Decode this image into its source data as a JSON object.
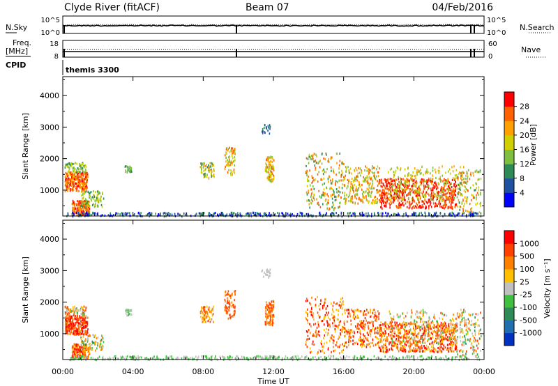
{
  "header": {
    "station": "Clyde River (fitACF)",
    "beam": "Beam 07",
    "date": "04/Feb/2016"
  },
  "strip": {
    "nsky_label": "N.Sky",
    "nsearch_label": "N.Search",
    "nsky_ticks": [
      "10^5",
      "10^0"
    ],
    "nsearch_ticks": [
      "10^5",
      "10^0"
    ],
    "freq_label_line1": "Freq.",
    "freq_label_line2": "[MHz]",
    "freq_ticks": [
      "18",
      "8"
    ],
    "nave_label": "Nave",
    "nave_ticks": [
      "60",
      "0"
    ],
    "cpid_label": "CPID",
    "cpid_value": "themis 3300"
  },
  "chart_data": [
    {
      "type": "heatmap",
      "quantity": "power",
      "ylabel": "Slant Range [km]",
      "yticks": [
        1000,
        2000,
        3000,
        4000
      ],
      "ylim": [
        180,
        4600
      ],
      "colorbar_label": "Power [dB]",
      "colorbar_ticks": [
        4,
        8,
        12,
        16,
        20,
        24,
        28
      ],
      "colorbar_range": [
        0,
        32
      ],
      "colors": [
        "#0000ff",
        "#2050a0",
        "#2e8b57",
        "#7fbf3f",
        "#d0d000",
        "#ffa000",
        "#ff6000",
        "#ff0000"
      ]
    },
    {
      "type": "heatmap",
      "quantity": "velocity",
      "ylabel": "Slant Range [km]",
      "yticks": [
        1000,
        2000,
        3000,
        4000
      ],
      "ylim": [
        180,
        4600
      ],
      "xlabel": "Time UT",
      "xticks": [
        "00:00",
        "04:00",
        "08:00",
        "12:00",
        "16:00",
        "20:00",
        "00:00"
      ],
      "colorbar_label": "Velocity  [m s⁻¹]",
      "colorbar_ticks": [
        "1000",
        "500",
        "100",
        "25",
        "-25",
        "-100",
        "-500",
        "-1000"
      ],
      "colors": [
        "#0030c0",
        "#2070b0",
        "#2e8b57",
        "#40c040",
        "#c0c0c0",
        "#ffc000",
        "#ff8000",
        "#ff4000",
        "#ff0000"
      ]
    }
  ]
}
